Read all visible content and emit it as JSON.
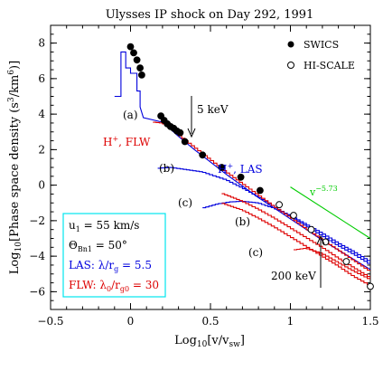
{
  "chart_data": {
    "type": "scatter",
    "title": "Ulysses IP shock on Day 292, 1991",
    "xlabel": "Log10[v/vsw]",
    "ylabel": "Log10[Phase space density (s3/km6)]",
    "xlim": [
      -0.5,
      1.5
    ],
    "ylim": [
      -7,
      9
    ],
    "x_ticks": [
      -0.5,
      0,
      0.5,
      1,
      1.5
    ],
    "x_tick_labels": [
      "−0.5",
      "0",
      "0.5",
      "1",
      "1.5"
    ],
    "y_ticks": [
      -6,
      -4,
      -2,
      0,
      2,
      4,
      6,
      8
    ],
    "y_tick_labels": [
      "−6",
      "−4",
      "−2",
      "0",
      "2",
      "4",
      "6",
      "8"
    ],
    "series": [
      {
        "name": "SWICS",
        "marker": "filled-circle",
        "color": "#000000",
        "x": [
          0.0,
          0.02,
          0.04,
          0.06,
          0.07,
          0.19,
          0.21,
          0.23,
          0.25,
          0.27,
          0.29,
          0.31,
          0.34,
          0.45,
          0.57,
          0.69,
          0.81
        ],
        "y": [
          7.8,
          7.45,
          7.05,
          6.6,
          6.2,
          3.9,
          3.65,
          3.45,
          3.3,
          3.2,
          3.05,
          2.95,
          2.45,
          1.7,
          1.0,
          0.45,
          -0.3
        ]
      },
      {
        "name": "HI-SCALE",
        "marker": "open-circle",
        "color": "#000000",
        "x": [
          0.93,
          1.02,
          1.13,
          1.22,
          1.35,
          1.5
        ],
        "y": [
          -1.1,
          -1.7,
          -2.5,
          -3.2,
          -4.3,
          -5.7
        ]
      },
      {
        "name": "H+, LAS",
        "color": "#0000dd",
        "curves": [
          {
            "label": "(a)",
            "x": [
              -0.1,
              -0.06,
              -0.06,
              -0.03,
              -0.03,
              0.0,
              0.0,
              0.04,
              0.04,
              0.06,
              0.06,
              0.08,
              0.2,
              0.3,
              0.4,
              0.5,
              0.6,
              0.7,
              0.8,
              0.9,
              1.0,
              1.1,
              1.2,
              1.3,
              1.4,
              1.5
            ],
            "y": [
              5.0,
              5.0,
              7.5,
              7.5,
              6.6,
              6.6,
              6.3,
              6.3,
              5.3,
              5.3,
              4.4,
              3.8,
              3.55,
              2.75,
              2.0,
              1.3,
              0.6,
              -0.05,
              -0.7,
              -1.3,
              -1.9,
              -2.5,
              -3.1,
              -3.65,
              -4.2,
              -4.75
            ]
          },
          {
            "label": "(b)",
            "x": [
              0.17,
              0.25,
              0.33,
              0.45,
              0.6,
              0.7,
              0.8,
              0.9,
              1.0,
              1.1,
              1.2,
              1.3,
              1.4,
              1.5
            ],
            "y": [
              0.95,
              1.0,
              0.9,
              0.75,
              0.3,
              -0.15,
              -0.65,
              -1.2,
              -1.75,
              -2.3,
              -2.85,
              -3.4,
              -3.9,
              -4.45
            ]
          },
          {
            "label": "(c)",
            "x": [
              0.45,
              0.55,
              0.62,
              0.7,
              0.8,
              0.9,
              1.0,
              1.1,
              1.2,
              1.3,
              1.4,
              1.5
            ],
            "y": [
              -1.3,
              -1.05,
              -0.95,
              -0.9,
              -1.0,
              -1.3,
              -1.7,
              -2.2,
              -2.7,
              -3.25,
              -3.75,
              -4.3
            ]
          }
        ]
      },
      {
        "name": "H+, FLW",
        "color": "#dd0000",
        "curves": [
          {
            "label": "(a)",
            "x": [
              0.14,
              0.2,
              0.25,
              0.3,
              0.4,
              0.5,
              0.6,
              0.7,
              0.8,
              0.9,
              1.0,
              1.1,
              1.2,
              1.3,
              1.4,
              1.5
            ],
            "y": [
              3.55,
              3.5,
              3.3,
              2.85,
              2.15,
              1.45,
              0.75,
              0.1,
              -0.55,
              -1.2,
              -1.8,
              -2.45,
              -3.05,
              -3.65,
              -4.25,
              -4.85
            ]
          },
          {
            "label": "(b)",
            "x": [
              0.57,
              0.7,
              0.8,
              0.9,
              1.0,
              1.1,
              1.2,
              1.3,
              1.4,
              1.5
            ],
            "y": [
              -0.45,
              -0.9,
              -1.35,
              -1.85,
              -2.4,
              -2.95,
              -3.5,
              -4.1,
              -4.65,
              -5.2
            ]
          },
          {
            "label": "(c)",
            "x": [
              0.57,
              0.7,
              0.8,
              0.9,
              1.0,
              1.1,
              1.2,
              1.3,
              1.4,
              1.5
            ],
            "y": [
              -1.0,
              -1.4,
              -1.85,
              -2.35,
              -2.9,
              -3.45,
              -4.0,
              -4.55,
              -5.15,
              -5.65
            ]
          },
          {
            "label": "(c)",
            "x": [
              1.02,
              1.1,
              1.2,
              1.3,
              1.4,
              1.5
            ],
            "y": [
              -3.65,
              -3.55,
              -3.85,
              -4.35,
              -4.85,
              -5.3
            ]
          }
        ]
      },
      {
        "name": "v^-5.73",
        "color": "#00cc00",
        "x": [
          1.0,
          1.5
        ],
        "y": [
          -0.1,
          -3.0
        ]
      }
    ],
    "legend": {
      "placement": "top-right",
      "entries": [
        "SWICS",
        "HI-SCALE"
      ]
    },
    "annotations": {
      "curve_labels": [
        "(a)",
        "(b)",
        "(c)",
        "(b)",
        "(c)"
      ],
      "las_label": "H+, LAS",
      "flw_label": "H+, FLW",
      "power_law": "v",
      "power_law_exp": "−5.73",
      "arrow_5kev": "5 keV",
      "arrow_200kev": "200 keV"
    },
    "parameters": {
      "u1": "u",
      "u1_sub": "1",
      "u1_value": " = 55 km/s",
      "theta": "Θ",
      "theta_sub": "Bn1",
      "theta_value": " = 50°",
      "las": "LAS: λ/r",
      "las_sub": "g",
      "las_value": " = 5.5",
      "flw": "FLW: λ",
      "flw_sub1": "0",
      "flw_mid": "/r",
      "flw_sub2": "g0",
      "flw_value": " = 30"
    },
    "colors": {
      "las": "#0000dd",
      "flw": "#dd0000",
      "power_law": "#00cc00",
      "box_border": "#00e5ee"
    }
  }
}
